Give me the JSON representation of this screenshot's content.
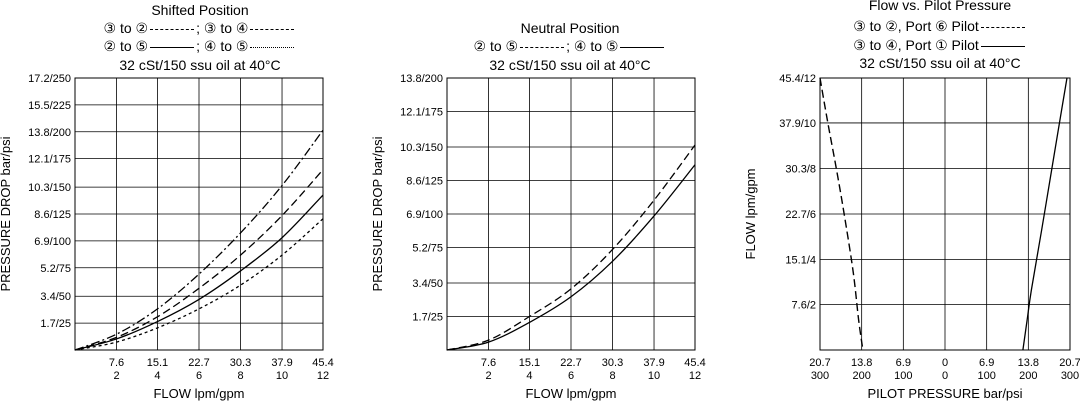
{
  "charts": [
    {
      "title": "Shifted Position",
      "legend_lines": [
        [
          "③ to ②",
          "dashdot",
          "; ③ to ④",
          "dash"
        ],
        [
          "② to ⑤",
          "solid",
          "; ④ to ⑤",
          "short"
        ]
      ],
      "oil_note": "32 cSt/150 ssu oil at 40°C",
      "xlabel": "FLOW lpm/gpm",
      "ylabel": "PRESSURE DROP bar/psi",
      "x_ticks_top": [
        "7.6",
        "15.1",
        "22.7",
        "30.3",
        "37.9",
        "45.4"
      ],
      "x_ticks_bottom": [
        "2",
        "4",
        "6",
        "8",
        "10",
        "12"
      ],
      "y_ticks": [
        "1.7/25",
        "3.4/50",
        "5.2/75",
        "6.9/100",
        "8.6/125",
        "10.3/150",
        "12.1/175",
        "13.8/200",
        "15.5/225",
        "17.2/250"
      ]
    },
    {
      "title": "Neutral Position",
      "legend_lines": [
        [
          "② to ⑤",
          "dash",
          "; ④ to ⑤",
          "solid"
        ]
      ],
      "oil_note": "32 cSt/150 ssu oil at 40°C",
      "xlabel": "FLOW lpm/gpm",
      "ylabel": "PRESSURE DROP bar/psi",
      "x_ticks_top": [
        "7.6",
        "15.1",
        "22.7",
        "30.3",
        "37.9",
        "45.4"
      ],
      "x_ticks_bottom": [
        "2",
        "4",
        "6",
        "8",
        "10",
        "12"
      ],
      "y_ticks": [
        "1.7/25",
        "3.4/50",
        "5.2/75",
        "6.9/100",
        "8.6/125",
        "10.3/150",
        "12.1/175",
        "13.8/200"
      ]
    },
    {
      "title": "Flow vs. Pilot Pressure",
      "legend_lines": [
        [
          "③ to ②, Port ⑥ Pilot",
          "dash"
        ],
        [
          "③ to ④, Port ① Pilot",
          "solid"
        ]
      ],
      "oil_note": "32 cSt/150 ssu oil at 40°C",
      "xlabel": "PILOT PRESSURE bar/psi",
      "ylabel": "FLOW lpm/gpm",
      "x_ticks_top": [
        "20.7",
        "13.8",
        "6.9",
        "0",
        "6.9",
        "13.8",
        "20.7"
      ],
      "x_ticks_bottom": [
        "300",
        "200",
        "100",
        "0",
        "100",
        "200",
        "300"
      ],
      "y_ticks": [
        "7.6/2",
        "15.1/4",
        "22.7/6",
        "30.3/8",
        "37.9/10",
        "45.4/12"
      ]
    }
  ],
  "chart_data": [
    {
      "type": "line",
      "title": "Shifted Position",
      "xlabel": "FLOW lpm/gpm",
      "ylabel": "PRESSURE DROP bar/psi",
      "xlim": [
        0,
        45.4
      ],
      "ylim": [
        0,
        17.2
      ],
      "grid": true,
      "series": [
        {
          "name": "③ to ②",
          "style": "dashdot",
          "x": [
            0,
            7.6,
            15.1,
            22.7,
            30.3,
            37.9,
            45.4
          ],
          "y": [
            0,
            1.0,
            2.6,
            4.8,
            7.4,
            10.4,
            13.9
          ]
        },
        {
          "name": "③ to ④",
          "style": "dash",
          "x": [
            0,
            7.6,
            15.1,
            22.7,
            30.3,
            37.9,
            45.4
          ],
          "y": [
            0,
            0.8,
            2.1,
            3.9,
            6.0,
            8.5,
            11.4
          ]
        },
        {
          "name": "② to ⑤",
          "style": "solid",
          "x": [
            0,
            7.6,
            15.1,
            22.7,
            30.3,
            37.9,
            45.4
          ],
          "y": [
            0,
            0.7,
            1.8,
            3.2,
            5.0,
            7.1,
            9.8
          ]
        },
        {
          "name": "④ to ⑤",
          "style": "short",
          "x": [
            0,
            7.6,
            15.1,
            22.7,
            30.3,
            37.9,
            45.4
          ],
          "y": [
            0,
            0.5,
            1.4,
            2.6,
            4.1,
            6.0,
            8.3
          ]
        }
      ]
    },
    {
      "type": "line",
      "title": "Neutral Position",
      "xlabel": "FLOW lpm/gpm",
      "ylabel": "PRESSURE DROP bar/psi",
      "xlim": [
        0,
        45.4
      ],
      "ylim": [
        0,
        13.8
      ],
      "grid": true,
      "series": [
        {
          "name": "② to ⑤",
          "style": "dash",
          "x": [
            0,
            7.6,
            15.1,
            22.7,
            30.3,
            37.9,
            45.4
          ],
          "y": [
            0,
            0.5,
            1.7,
            3.1,
            5.1,
            7.6,
            10.4
          ]
        },
        {
          "name": "④ to ⑤",
          "style": "solid",
          "x": [
            0,
            7.6,
            15.1,
            22.7,
            30.3,
            37.9,
            45.4
          ],
          "y": [
            0,
            0.4,
            1.4,
            2.7,
            4.5,
            6.8,
            9.4
          ]
        }
      ]
    },
    {
      "type": "line",
      "title": "Flow vs. Pilot Pressure",
      "xlabel": "PILOT PRESSURE bar/psi",
      "ylabel": "FLOW lpm/gpm",
      "xlim": [
        -20.7,
        20.7
      ],
      "ylim": [
        0,
        45.4
      ],
      "grid": true,
      "series": [
        {
          "name": "③ to ②, Port ⑥ Pilot",
          "style": "dash",
          "x": [
            -20.7,
            -19.4,
            -18.0,
            -16.7,
            -15.2,
            -14.3,
            -13.6
          ],
          "y": [
            45.4,
            37.9,
            30.3,
            22.7,
            13.0,
            5.0,
            0
          ]
        },
        {
          "name": "③ to ④, Port ① Pilot",
          "style": "solid",
          "x": [
            12.9,
            13.6,
            14.3,
            16.0,
            17.7,
            19.3,
            20.2
          ],
          "y": [
            0,
            5.0,
            10.0,
            20.0,
            30.3,
            40.0,
            45.4
          ]
        }
      ]
    }
  ]
}
